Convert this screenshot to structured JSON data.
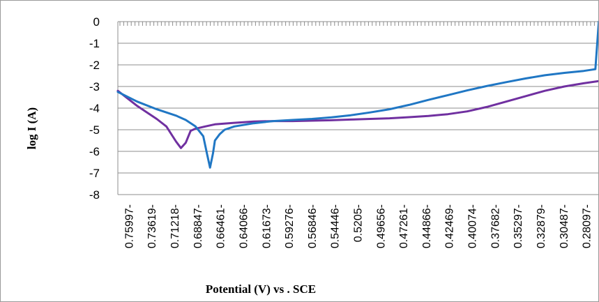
{
  "chart_data": {
    "type": "line",
    "xlabel": "Potential  (V) vs . SCE",
    "ylabel": "log I (A)",
    "ylim": [
      -8,
      0
    ],
    "yticks": [
      0,
      -1,
      -2,
      -3,
      -4,
      -5,
      -6,
      -7,
      -8
    ],
    "grid": true,
    "x_tick_labels": [
      "0.75997-",
      "0.73619-",
      "0.71218-",
      "0.68847-",
      "0.66461-",
      "0.64066-",
      "0.61673-",
      "0.59276-",
      "0.56846-",
      "0.54446-",
      "0.5205-",
      "0.49656-",
      "0.47261-",
      "0.44866-",
      "0.42469-",
      "0.40074-",
      "0.37682-",
      "0.35297-",
      "0.32879-",
      "0.30487-",
      "0.28097-"
    ],
    "x_range": [
      0.76,
      0.265
    ],
    "series": [
      {
        "color": "#7030a0",
        "x": [
          0.76,
          0.75,
          0.74,
          0.73,
          0.72,
          0.71,
          0.7,
          0.695,
          0.69,
          0.685,
          0.68,
          0.675,
          0.67,
          0.665,
          0.66,
          0.64,
          0.62,
          0.6,
          0.58,
          0.56,
          0.54,
          0.52,
          0.5,
          0.48,
          0.46,
          0.44,
          0.42,
          0.4,
          0.38,
          0.36,
          0.34,
          0.32,
          0.3,
          0.28,
          0.265
        ],
        "y": [
          -3.2,
          -3.55,
          -3.9,
          -4.2,
          -4.5,
          -4.85,
          -5.55,
          -5.85,
          -5.6,
          -5.05,
          -4.95,
          -4.9,
          -4.85,
          -4.8,
          -4.75,
          -4.68,
          -4.62,
          -4.6,
          -4.6,
          -4.58,
          -4.56,
          -4.53,
          -4.5,
          -4.47,
          -4.42,
          -4.36,
          -4.28,
          -4.15,
          -3.95,
          -3.7,
          -3.45,
          -3.2,
          -3.0,
          -2.85,
          -2.75
        ]
      },
      {
        "color": "#2077c4",
        "x": [
          0.76,
          0.74,
          0.72,
          0.7,
          0.69,
          0.68,
          0.672,
          0.668,
          0.665,
          0.662,
          0.66,
          0.655,
          0.65,
          0.64,
          0.62,
          0.6,
          0.58,
          0.56,
          0.54,
          0.52,
          0.5,
          0.48,
          0.46,
          0.44,
          0.42,
          0.4,
          0.38,
          0.36,
          0.34,
          0.32,
          0.3,
          0.28,
          0.268,
          0.2645
        ],
        "y": [
          -3.25,
          -3.7,
          -4.05,
          -4.35,
          -4.55,
          -4.85,
          -5.3,
          -6.15,
          -6.75,
          -6.1,
          -5.5,
          -5.2,
          -5.0,
          -4.85,
          -4.7,
          -4.6,
          -4.55,
          -4.5,
          -4.43,
          -4.33,
          -4.2,
          -4.05,
          -3.85,
          -3.62,
          -3.4,
          -3.18,
          -2.98,
          -2.8,
          -2.63,
          -2.48,
          -2.37,
          -2.28,
          -2.2,
          0.0
        ]
      }
    ]
  }
}
